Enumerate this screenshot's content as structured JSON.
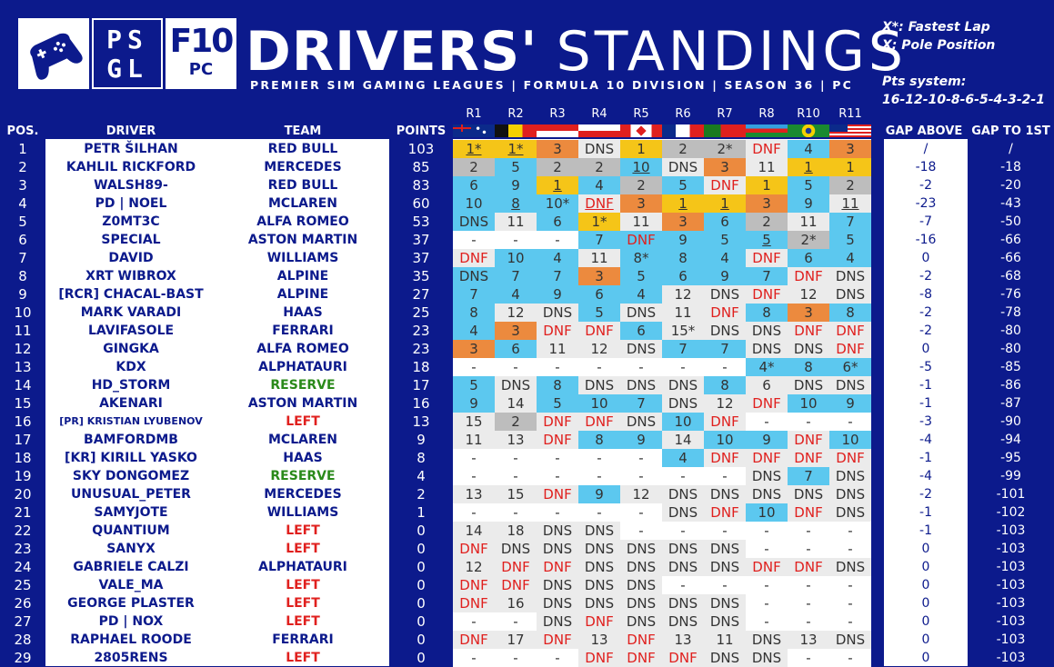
{
  "logos": {
    "psgl": [
      "PS",
      "GL"
    ],
    "f10_big": "F10",
    "f10_small": "PC"
  },
  "title_bold": "DRIVERS'",
  "title_light": "STANDINGS",
  "subtitle": "PREMIER SIM GAMING LEAGUES | FORMULA 10 DIVISION | SEASON 36 | PC",
  "notes": {
    "fastest": "X*: Fastest Lap",
    "pole": "X:  Pole Position",
    "pts_title": "Pts system:",
    "pts_values": "16-12-10-8-6-5-4-3-2-1"
  },
  "headers": {
    "pos": "POS.",
    "driver": "DRIVER",
    "team": "TEAM",
    "points": "POINTS",
    "gap_above": "GAP ABOVE",
    "gap_first": "GAP TO 1ST"
  },
  "rounds": [
    {
      "label": "R1",
      "flag": "australia-flag"
    },
    {
      "label": "R2",
      "flag": "belgium-flag"
    },
    {
      "label": "R3",
      "flag": "indonesia-flag"
    },
    {
      "label": "R4",
      "flag": "poland-flag"
    },
    {
      "label": "R5",
      "flag": "canada-flag"
    },
    {
      "label": "R6",
      "flag": "france-flag"
    },
    {
      "label": "R7",
      "flag": "portugal-flag"
    },
    {
      "label": "R8",
      "flag": "azerbaijan-flag"
    },
    {
      "label": "R10",
      "flag": "brazil-flag"
    },
    {
      "label": "R11",
      "flag": "usa-flag"
    }
  ],
  "colors": {
    "background": "#0c1a8c",
    "gold": "#f5c518",
    "silver": "#bdbdbd",
    "bronze": "#ec8a3e",
    "points": "#5cc8ef",
    "no_points": "#ebebeb",
    "dnf": "#e0201e",
    "left": "#e0201e",
    "reserve": "#2a8a1a",
    "team": "#0c1a8c"
  },
  "rows": [
    {
      "pos": "1",
      "driver": "PETR ŠILHAN",
      "team": "RED BULL",
      "team_status": "normal",
      "points": "103",
      "results": [
        "1*",
        "1*",
        "3",
        "DNS",
        "1",
        "2",
        "2*",
        "DNF",
        "4",
        "3"
      ],
      "colors": [
        "g",
        "g",
        "b",
        "n",
        "g",
        "s",
        "s",
        "n",
        "p",
        "b"
      ],
      "underline": [
        0,
        1
      ],
      "gap_above": "/",
      "gap_first": "/"
    },
    {
      "pos": "2",
      "driver": "KAHLIL RICKFORD",
      "team": "MERCEDES",
      "team_status": "normal",
      "points": "85",
      "results": [
        "2",
        "5",
        "2",
        "2",
        "10",
        "DNS",
        "3",
        "11",
        "1",
        "1"
      ],
      "colors": [
        "s",
        "p",
        "s",
        "s",
        "p",
        "n",
        "b",
        "n",
        "g",
        "g"
      ],
      "underline": [
        4,
        8
      ],
      "gap_above": "-18",
      "gap_first": "-18"
    },
    {
      "pos": "3",
      "driver": "WALSH89-",
      "team": "RED BULL",
      "team_status": "normal",
      "points": "83",
      "results": [
        "6",
        "9",
        "1",
        "4",
        "2",
        "5",
        "DNF",
        "1",
        "5",
        "2"
      ],
      "colors": [
        "p",
        "p",
        "g",
        "p",
        "s",
        "p",
        "n",
        "g",
        "p",
        "s"
      ],
      "underline": [
        2
      ],
      "gap_above": "-2",
      "gap_first": "-20"
    },
    {
      "pos": "4",
      "driver": "PD | NOEL",
      "team": "MCLAREN",
      "team_status": "normal",
      "points": "60",
      "results": [
        "10",
        "8",
        "10*",
        "DNF",
        "3",
        "1",
        "1",
        "3",
        "9",
        "11"
      ],
      "colors": [
        "p",
        "p",
        "p",
        "n",
        "b",
        "g",
        "g",
        "b",
        "p",
        "n"
      ],
      "underline": [
        1,
        3,
        5,
        6,
        9
      ],
      "gap_above": "-23",
      "gap_first": "-43"
    },
    {
      "pos": "5",
      "driver": "Z0MT3C",
      "team": "ALFA ROMEO",
      "team_status": "normal",
      "points": "53",
      "results": [
        "DNS",
        "11",
        "6",
        "1*",
        "11",
        "3",
        "6",
        "2",
        "11",
        "7"
      ],
      "colors": [
        "p",
        "n",
        "p",
        "g",
        "n",
        "b",
        "p",
        "s",
        "n",
        "p"
      ],
      "underline": [],
      "gap_above": "-7",
      "gap_first": "-50"
    },
    {
      "pos": "6",
      "driver": "SPECIAL",
      "team": "ASTON MARTIN",
      "team_status": "normal",
      "points": "37",
      "results": [
        "-",
        "-",
        "-",
        "7",
        "DNF",
        "9",
        "5",
        "5",
        "2*",
        "5"
      ],
      "colors": [
        "w",
        "w",
        "w",
        "p",
        "p",
        "p",
        "p",
        "p",
        "s",
        "p"
      ],
      "underline": [
        7
      ],
      "gap_above": "-16",
      "gap_first": "-66"
    },
    {
      "pos": "7",
      "driver": "DAVID",
      "team": "WILLIAMS",
      "team_status": "normal",
      "points": "37",
      "results": [
        "DNF",
        "10",
        "4",
        "11",
        "8*",
        "8",
        "4",
        "DNF",
        "6",
        "4"
      ],
      "colors": [
        "n",
        "p",
        "p",
        "n",
        "p",
        "p",
        "p",
        "n",
        "p",
        "p"
      ],
      "underline": [],
      "gap_above": "0",
      "gap_first": "-66"
    },
    {
      "pos": "8",
      "driver": "XRT WIBROX",
      "team": "ALPINE",
      "team_status": "normal",
      "points": "35",
      "results": [
        "DNS",
        "7",
        "7",
        "3",
        "5",
        "6",
        "9",
        "7",
        "DNF",
        "DNS"
      ],
      "colors": [
        "p",
        "p",
        "p",
        "b",
        "p",
        "p",
        "p",
        "p",
        "n",
        "n"
      ],
      "underline": [],
      "gap_above": "-2",
      "gap_first": "-68"
    },
    {
      "pos": "9",
      "driver": "[RCR] CHACAL-BAST",
      "team": "ALPINE",
      "team_status": "normal",
      "points": "27",
      "results": [
        "7",
        "4",
        "9",
        "6",
        "4",
        "12",
        "DNS",
        "DNF",
        "12",
        "DNS"
      ],
      "colors": [
        "p",
        "p",
        "p",
        "p",
        "p",
        "n",
        "n",
        "n",
        "n",
        "n"
      ],
      "underline": [],
      "gap_above": "-8",
      "gap_first": "-76"
    },
    {
      "pos": "10",
      "driver": "MARK VARADI",
      "team": "HAAS",
      "team_status": "normal",
      "points": "25",
      "results": [
        "8",
        "12",
        "DNS",
        "5",
        "DNS",
        "11",
        "DNF",
        "8",
        "3",
        "8"
      ],
      "colors": [
        "p",
        "n",
        "n",
        "p",
        "n",
        "n",
        "n",
        "p",
        "b",
        "p"
      ],
      "underline": [],
      "gap_above": "-2",
      "gap_first": "-78"
    },
    {
      "pos": "11",
      "driver": "LAVIFASOLE",
      "team": "FERRARI",
      "team_status": "normal",
      "points": "23",
      "results": [
        "4",
        "3",
        "DNF",
        "DNF",
        "6",
        "15*",
        "DNS",
        "DNS",
        "DNF",
        "DNF"
      ],
      "colors": [
        "p",
        "b",
        "n",
        "n",
        "p",
        "n",
        "n",
        "n",
        "n",
        "n"
      ],
      "underline": [],
      "gap_above": "-2",
      "gap_first": "-80"
    },
    {
      "pos": "12",
      "driver": "GINGKA",
      "team": "ALFA ROMEO",
      "team_status": "normal",
      "points": "23",
      "results": [
        "3",
        "6",
        "11",
        "12",
        "DNS",
        "7",
        "7",
        "DNS",
        "DNS",
        "DNF"
      ],
      "colors": [
        "b",
        "p",
        "n",
        "n",
        "n",
        "p",
        "p",
        "n",
        "n",
        "n"
      ],
      "underline": [],
      "gap_above": "0",
      "gap_first": "-80"
    },
    {
      "pos": "13",
      "driver": "KDX",
      "team": "ALPHATAURI",
      "team_status": "normal",
      "points": "18",
      "results": [
        "-",
        "-",
        "-",
        "-",
        "-",
        "-",
        "-",
        "4*",
        "8",
        "6*"
      ],
      "colors": [
        "w",
        "w",
        "w",
        "w",
        "w",
        "w",
        "w",
        "p",
        "p",
        "p"
      ],
      "underline": [],
      "gap_above": "-5",
      "gap_first": "-85"
    },
    {
      "pos": "14",
      "driver": "HD_STORM",
      "team": "RESERVE",
      "team_status": "reserve",
      "points": "17",
      "results": [
        "5",
        "DNS",
        "8",
        "DNS",
        "DNS",
        "DNS",
        "8",
        "6",
        "DNS",
        "DNS"
      ],
      "colors": [
        "p",
        "n",
        "p",
        "n",
        "n",
        "n",
        "p",
        "n",
        "n",
        "n"
      ],
      "underline": [],
      "gap_above": "-1",
      "gap_first": "-86"
    },
    {
      "pos": "15",
      "driver": "AKENARI",
      "team": "ASTON MARTIN",
      "team_status": "normal",
      "points": "16",
      "results": [
        "9",
        "14",
        "5",
        "10",
        "7",
        "DNS",
        "12",
        "DNF",
        "10",
        "9"
      ],
      "colors": [
        "p",
        "n",
        "p",
        "p",
        "p",
        "n",
        "n",
        "n",
        "p",
        "p"
      ],
      "underline": [],
      "gap_above": "-1",
      "gap_first": "-87"
    },
    {
      "pos": "16",
      "driver": "[PR] KRISTIAN LYUBENOV",
      "team": "LEFT",
      "team_status": "left",
      "points": "13",
      "results": [
        "15",
        "2",
        "DNF",
        "DNF",
        "DNS",
        "10",
        "DNF",
        "-",
        "-",
        "-"
      ],
      "colors": [
        "n",
        "s",
        "n",
        "n",
        "n",
        "p",
        "n",
        "w",
        "w",
        "w"
      ],
      "underline": [],
      "gap_above": "-3",
      "gap_first": "-90"
    },
    {
      "pos": "17",
      "driver": "BAMFORDMB",
      "team": "MCLAREN",
      "team_status": "normal",
      "points": "9",
      "results": [
        "11",
        "13",
        "DNF",
        "8",
        "9",
        "14",
        "10",
        "9",
        "DNF",
        "10"
      ],
      "colors": [
        "n",
        "n",
        "n",
        "p",
        "p",
        "n",
        "p",
        "p",
        "n",
        "p"
      ],
      "underline": [],
      "gap_above": "-4",
      "gap_first": "-94"
    },
    {
      "pos": "18",
      "driver": "[KR] KIRILL YASKO",
      "team": "HAAS",
      "team_status": "normal",
      "points": "8",
      "results": [
        "-",
        "-",
        "-",
        "-",
        "-",
        "4",
        "DNF",
        "DNF",
        "DNF",
        "DNF"
      ],
      "colors": [
        "w",
        "w",
        "w",
        "w",
        "w",
        "p",
        "n",
        "n",
        "n",
        "n"
      ],
      "underline": [],
      "gap_above": "-1",
      "gap_first": "-95"
    },
    {
      "pos": "19",
      "driver": "SKY DONGOMEZ",
      "team": "RESERVE",
      "team_status": "reserve",
      "points": "4",
      "results": [
        "-",
        "-",
        "-",
        "-",
        "-",
        "-",
        "-",
        "DNS",
        "7",
        "DNS"
      ],
      "colors": [
        "w",
        "w",
        "w",
        "w",
        "w",
        "w",
        "w",
        "n",
        "p",
        "n"
      ],
      "underline": [],
      "gap_above": "-4",
      "gap_first": "-99"
    },
    {
      "pos": "20",
      "driver": "UNUSUAL_PETER",
      "team": "MERCEDES",
      "team_status": "normal",
      "points": "2",
      "results": [
        "13",
        "15",
        "DNF",
        "9",
        "12",
        "DNS",
        "DNS",
        "DNS",
        "DNS",
        "DNS"
      ],
      "colors": [
        "n",
        "n",
        "n",
        "p",
        "n",
        "n",
        "n",
        "n",
        "n",
        "n"
      ],
      "underline": [],
      "gap_above": "-2",
      "gap_first": "-101"
    },
    {
      "pos": "21",
      "driver": "SAMYJOTE",
      "team": "WILLIAMS",
      "team_status": "normal",
      "points": "1",
      "results": [
        "-",
        "-",
        "-",
        "-",
        "-",
        "DNS",
        "DNF",
        "10",
        "DNF",
        "DNS"
      ],
      "colors": [
        "w",
        "w",
        "w",
        "w",
        "w",
        "n",
        "n",
        "p",
        "n",
        "n"
      ],
      "underline": [],
      "gap_above": "-1",
      "gap_first": "-102"
    },
    {
      "pos": "22",
      "driver": "QUANTIUM",
      "team": "LEFT",
      "team_status": "left",
      "points": "0",
      "results": [
        "14",
        "18",
        "DNS",
        "DNS",
        "-",
        "-",
        "-",
        "-",
        "-",
        "-"
      ],
      "colors": [
        "n",
        "n",
        "n",
        "n",
        "w",
        "w",
        "w",
        "w",
        "w",
        "w"
      ],
      "underline": [],
      "gap_above": "-1",
      "gap_first": "-103"
    },
    {
      "pos": "23",
      "driver": "SANYX",
      "team": "LEFT",
      "team_status": "left",
      "points": "0",
      "results": [
        "DNF",
        "DNS",
        "DNS",
        "DNS",
        "DNS",
        "DNS",
        "DNS",
        "-",
        "-",
        "-"
      ],
      "colors": [
        "n",
        "n",
        "n",
        "n",
        "n",
        "n",
        "n",
        "w",
        "w",
        "w"
      ],
      "underline": [],
      "gap_above": "0",
      "gap_first": "-103"
    },
    {
      "pos": "24",
      "driver": "GABRIELE CALZI",
      "team": "ALPHATAURI",
      "team_status": "normal",
      "points": "0",
      "results": [
        "12",
        "DNF",
        "DNF",
        "DNS",
        "DNS",
        "DNS",
        "DNS",
        "DNF",
        "DNF",
        "DNS"
      ],
      "colors": [
        "n",
        "n",
        "n",
        "n",
        "n",
        "n",
        "n",
        "n",
        "n",
        "n"
      ],
      "underline": [],
      "gap_above": "0",
      "gap_first": "-103"
    },
    {
      "pos": "25",
      "driver": "VALE_MA",
      "team": "LEFT",
      "team_status": "left",
      "points": "0",
      "results": [
        "DNF",
        "DNF",
        "DNS",
        "DNS",
        "DNS",
        "-",
        "-",
        "-",
        "-",
        "-"
      ],
      "colors": [
        "n",
        "n",
        "n",
        "n",
        "n",
        "w",
        "w",
        "w",
        "w",
        "w"
      ],
      "underline": [],
      "gap_above": "0",
      "gap_first": "-103"
    },
    {
      "pos": "26",
      "driver": "GEORGE PLASTER",
      "team": "LEFT",
      "team_status": "left",
      "points": "0",
      "results": [
        "DNF",
        "16",
        "DNS",
        "DNS",
        "DNS",
        "DNS",
        "DNS",
        "-",
        "-",
        "-"
      ],
      "colors": [
        "n",
        "n",
        "n",
        "n",
        "n",
        "n",
        "n",
        "w",
        "w",
        "w"
      ],
      "underline": [],
      "gap_above": "0",
      "gap_first": "-103"
    },
    {
      "pos": "27",
      "driver": "PD | NOX",
      "team": "LEFT",
      "team_status": "left",
      "points": "0",
      "results": [
        "-",
        "-",
        "DNS",
        "DNF",
        "DNS",
        "DNS",
        "DNS",
        "-",
        "-",
        "-"
      ],
      "colors": [
        "w",
        "w",
        "n",
        "n",
        "n",
        "n",
        "n",
        "w",
        "w",
        "w"
      ],
      "underline": [],
      "gap_above": "0",
      "gap_first": "-103"
    },
    {
      "pos": "28",
      "driver": "RAPHAEL ROODE",
      "team": "FERRARI",
      "team_status": "normal",
      "points": "0",
      "results": [
        "DNF",
        "17",
        "DNF",
        "13",
        "DNF",
        "13",
        "11",
        "DNS",
        "13",
        "DNS"
      ],
      "colors": [
        "n",
        "n",
        "n",
        "n",
        "n",
        "n",
        "n",
        "n",
        "n",
        "n"
      ],
      "underline": [],
      "gap_above": "0",
      "gap_first": "-103"
    },
    {
      "pos": "29",
      "driver": "2805RENS",
      "team": "LEFT",
      "team_status": "left",
      "points": "0",
      "results": [
        "-",
        "-",
        "-",
        "DNF",
        "DNF",
        "DNF",
        "DNS",
        "DNS",
        "-",
        "-"
      ],
      "colors": [
        "w",
        "w",
        "w",
        "n",
        "n",
        "n",
        "n",
        "n",
        "w",
        "w"
      ],
      "underline": [],
      "gap_above": "0",
      "gap_first": "-103"
    }
  ]
}
